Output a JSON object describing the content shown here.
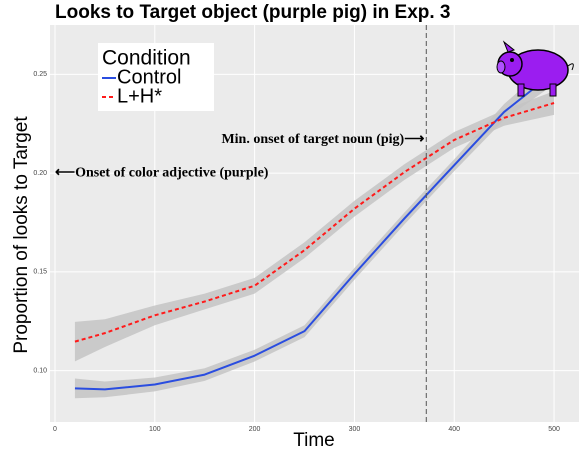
{
  "chart_data": {
    "type": "line",
    "title": "Looks to Target object (purple pig) in Exp. 3",
    "x_label": "Time",
    "y_label": "Proportion of looks to Target",
    "legend_title": "Condition",
    "legend_position": "top-left",
    "x": [
      20,
      50,
      100,
      150,
      200,
      250,
      300,
      350,
      400,
      450,
      500
    ],
    "series": [
      {
        "name": "Control",
        "color": "#2a4de0",
        "dash": false,
        "values": [
          0.091,
          0.0905,
          0.093,
          0.098,
          0.1076,
          0.12,
          0.149,
          0.177,
          0.204,
          0.231,
          0.251
        ],
        "lower": [
          0.086,
          0.0865,
          0.0895,
          0.0948,
          0.1046,
          0.117,
          0.146,
          0.174,
          0.201,
          0.227,
          0.245
        ],
        "upper": [
          0.096,
          0.0945,
          0.0965,
          0.1012,
          0.1106,
          0.123,
          0.152,
          0.18,
          0.207,
          0.235,
          0.257
        ]
      },
      {
        "name": "L+H*",
        "color": "#ff1a1a",
        "dash": true,
        "values": [
          0.1147,
          0.119,
          0.128,
          0.135,
          0.143,
          0.161,
          0.182,
          0.2005,
          0.2168,
          0.228,
          0.2355
        ],
        "lower": [
          0.1047,
          0.112,
          0.123,
          0.131,
          0.139,
          0.157,
          0.178,
          0.1965,
          0.2128,
          0.224,
          0.2295
        ],
        "upper": [
          0.1247,
          0.126,
          0.133,
          0.139,
          0.147,
          0.165,
          0.186,
          0.2045,
          0.2208,
          0.232,
          0.2415
        ]
      }
    ],
    "band_color": "#c4c4c4",
    "xlim": [
      -5,
      525
    ],
    "ylim": [
      0.074,
      0.275
    ],
    "xticks": [
      0,
      100,
      200,
      300,
      400,
      500
    ],
    "yticks": [
      {
        "value": 0.1,
        "label": "0.10"
      },
      0.15,
      {
        "value": 0.2,
        "label": "0.20"
      },
      0.25
    ],
    "grid": true,
    "vline": 372,
    "annotations": [
      {
        "text": "Min. onset of target noun (pig)⟶",
        "x": 372,
        "y": 0.217
      },
      {
        "text": "⟵Onset of color adjective (purple)",
        "x": -5,
        "y": 0.2
      }
    ]
  }
}
